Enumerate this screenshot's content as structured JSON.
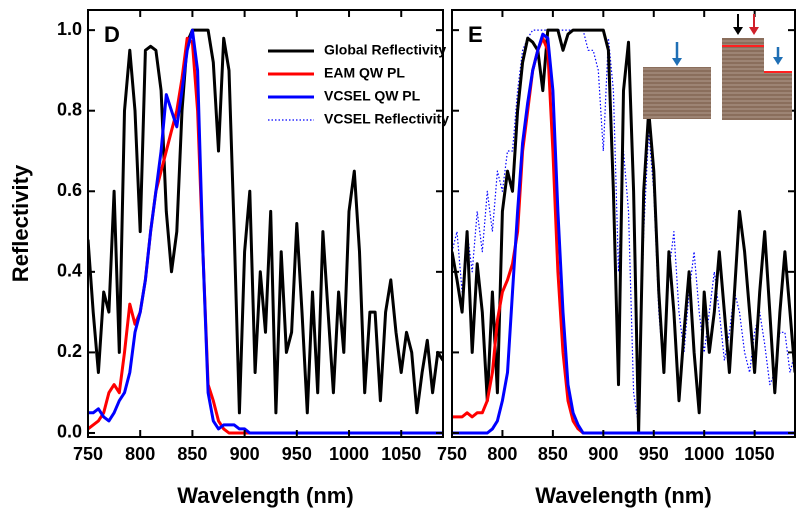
{
  "chart_data": [
    {
      "type": "line",
      "label": "D",
      "x_label": "Wavelength (nm)",
      "y_label": "Reflectivity",
      "xlim": [
        750,
        1090
      ],
      "ylim": [
        -0.01,
        1.05
      ],
      "xticks": [
        750,
        800,
        850,
        900,
        950,
        1000,
        1050
      ],
      "yticks": [
        {
          "value": 0,
          "label": "0.0"
        },
        {
          "value": 0.2,
          "label": "0.2"
        },
        {
          "value": 0.4,
          "label": "0.4"
        },
        {
          "value": 0.6,
          "label": "0.6"
        },
        {
          "value": 0.8,
          "label": "0.8"
        },
        {
          "value": 1,
          "label": "1.0"
        }
      ],
      "x": [
        750,
        755,
        760,
        765,
        770,
        775,
        780,
        785,
        790,
        795,
        800,
        805,
        810,
        815,
        820,
        825,
        830,
        835,
        840,
        845,
        850,
        855,
        860,
        865,
        870,
        875,
        880,
        885,
        890,
        895,
        900,
        905,
        910,
        915,
        920,
        925,
        930,
        935,
        940,
        945,
        950,
        955,
        960,
        965,
        970,
        975,
        980,
        985,
        990,
        995,
        1000,
        1005,
        1010,
        1015,
        1020,
        1025,
        1030,
        1035,
        1040,
        1045,
        1050,
        1055,
        1060,
        1065,
        1070,
        1075,
        1080,
        1085,
        1090
      ],
      "series": [
        {
          "name": "Global Reflectivity",
          "color": "#000000",
          "dash": "solid",
          "values": [
            0.48,
            0.3,
            0.15,
            0.35,
            0.3,
            0.6,
            0.2,
            0.8,
            0.95,
            0.8,
            0.5,
            0.95,
            0.96,
            0.95,
            0.85,
            0.55,
            0.4,
            0.5,
            0.8,
            0.97,
            1.0,
            1.0,
            1.0,
            1.0,
            0.92,
            0.7,
            0.98,
            0.9,
            0.5,
            0.05,
            0.45,
            0.6,
            0.15,
            0.4,
            0.25,
            0.55,
            0.05,
            0.45,
            0.2,
            0.25,
            0.52,
            0.3,
            0.05,
            0.35,
            0.1,
            0.5,
            0.3,
            0.1,
            0.35,
            0.2,
            0.55,
            0.65,
            0.45,
            0.1,
            0.3,
            0.3,
            0.08,
            0.3,
            0.38,
            0.25,
            0.15,
            0.25,
            0.2,
            0.05,
            0.15,
            0.23,
            0.1,
            0.2,
            0.18
          ]
        },
        {
          "name": "EAM QW PL",
          "color": "#ff0000",
          "dash": "solid",
          "values": [
            0.01,
            0.02,
            0.03,
            0.05,
            0.1,
            0.12,
            0.1,
            0.2,
            0.32,
            0.27,
            0.3,
            0.38,
            0.5,
            0.6,
            0.65,
            0.7,
            0.75,
            0.8,
            0.88,
            0.98,
            0.97,
            0.8,
            0.45,
            0.12,
            0.08,
            0.03,
            0.01,
            0,
            0,
            0,
            0,
            0,
            0,
            0,
            0,
            0,
            0,
            0,
            0,
            0,
            0,
            0,
            0,
            0,
            0,
            0,
            0,
            0,
            0,
            0,
            0,
            0,
            0,
            0,
            0,
            0,
            0,
            0,
            0,
            0,
            0,
            0,
            0,
            0,
            0,
            0,
            0,
            0,
            0
          ]
        },
        {
          "name": "VCSEL QW PL",
          "color": "#0000ff",
          "dash": "solid",
          "values": [
            0.05,
            0.05,
            0.06,
            0.04,
            0.03,
            0.05,
            0.08,
            0.1,
            0.15,
            0.25,
            0.3,
            0.38,
            0.5,
            0.6,
            0.7,
            0.84,
            0.8,
            0.76,
            0.85,
            0.95,
            1.0,
            0.9,
            0.45,
            0.1,
            0.03,
            0.01,
            0.02,
            0.02,
            0.02,
            0.01,
            0.01,
            0,
            0,
            0,
            0,
            0,
            0,
            0,
            0,
            0,
            0,
            0,
            0,
            0,
            0,
            0,
            0,
            0,
            0,
            0,
            0,
            0,
            0,
            0,
            0,
            0,
            0,
            0,
            0,
            0,
            0,
            0,
            0,
            0,
            0,
            0,
            0,
            0,
            0
          ]
        }
      ]
    },
    {
      "type": "line",
      "label": "E",
      "x_label": "Wavelength (nm)",
      "xlim": [
        750,
        1090
      ],
      "ylim": [
        -0.01,
        1.05
      ],
      "xticks": [
        750,
        800,
        850,
        900,
        950,
        1000,
        1050
      ],
      "yticks": [
        0,
        0.2,
        0.4,
        0.6,
        0.8,
        1
      ],
      "legend": "upper-right-of-first-panel",
      "x": [
        750,
        755,
        760,
        765,
        770,
        775,
        780,
        785,
        790,
        795,
        800,
        805,
        810,
        815,
        820,
        825,
        830,
        835,
        840,
        845,
        850,
        855,
        860,
        865,
        870,
        875,
        880,
        885,
        890,
        895,
        900,
        905,
        910,
        915,
        920,
        925,
        930,
        935,
        940,
        945,
        950,
        955,
        960,
        965,
        970,
        975,
        980,
        985,
        990,
        995,
        1000,
        1005,
        1010,
        1015,
        1020,
        1025,
        1030,
        1035,
        1040,
        1045,
        1050,
        1055,
        1060,
        1065,
        1070,
        1075,
        1080,
        1085,
        1090
      ],
      "series": [
        {
          "name": "Global Reflectivity",
          "color": "#000000",
          "dash": "solid",
          "values": [
            0.45,
            0.38,
            0.3,
            0.5,
            0.2,
            0.42,
            0.3,
            0.08,
            0.35,
            0.1,
            0.55,
            0.65,
            0.6,
            0.8,
            0.92,
            0.98,
            0.97,
            0.95,
            0.85,
            1.0,
            1.0,
            1.0,
            0.95,
            0.99,
            1.0,
            1.0,
            1.0,
            1.0,
            1.0,
            1.0,
            1.0,
            0.95,
            0.6,
            0.12,
            0.85,
            0.97,
            0.6,
            0.0,
            0.6,
            0.8,
            0.65,
            0.35,
            0.15,
            0.45,
            0.3,
            0.08,
            0.25,
            0.4,
            0.2,
            0.05,
            0.35,
            0.2,
            0.3,
            0.45,
            0.3,
            0.15,
            0.35,
            0.55,
            0.45,
            0.3,
            0.15,
            0.35,
            0.5,
            0.3,
            0.1,
            0.3,
            0.45,
            0.3,
            0.15
          ]
        },
        {
          "name": "EAM QW PL",
          "color": "#ff0000",
          "dash": "solid",
          "values": [
            0.04,
            0.04,
            0.04,
            0.05,
            0.04,
            0.05,
            0.05,
            0.08,
            0.15,
            0.28,
            0.35,
            0.38,
            0.42,
            0.5,
            0.7,
            0.8,
            0.9,
            0.95,
            0.98,
            0.95,
            0.7,
            0.4,
            0.2,
            0.08,
            0.03,
            0.01,
            0,
            0,
            0,
            0,
            0,
            0,
            0,
            0,
            0,
            0,
            0,
            0,
            0,
            0,
            0,
            0,
            0,
            0,
            0,
            0,
            0,
            0,
            0,
            0,
            0,
            0,
            0,
            0,
            0,
            0,
            0,
            0,
            0,
            0,
            0,
            0,
            0,
            0,
            0,
            0,
            0,
            0,
            0
          ]
        },
        {
          "name": "VCSEL QW PL",
          "color": "#0000ff",
          "dash": "solid",
          "values": [
            0,
            0,
            0,
            0,
            0,
            0,
            0,
            0,
            0.01,
            0.03,
            0.08,
            0.15,
            0.35,
            0.55,
            0.72,
            0.82,
            0.9,
            0.95,
            0.99,
            0.98,
            0.85,
            0.55,
            0.3,
            0.12,
            0.05,
            0.02,
            0,
            0,
            0,
            0,
            0,
            0,
            0,
            0,
            0,
            0,
            0,
            0,
            0,
            0,
            0,
            0,
            0,
            0,
            0,
            0,
            0,
            0,
            0,
            0,
            0,
            0,
            0,
            0,
            0,
            0,
            0,
            0,
            0,
            0,
            0,
            0,
            0,
            0,
            0,
            0,
            0,
            0,
            0
          ]
        },
        {
          "name": "VCSEL Reflectivity",
          "color": "#0000ff",
          "dash": "dotted",
          "values": [
            0.45,
            0.5,
            0.35,
            0.5,
            0.4,
            0.55,
            0.45,
            0.6,
            0.5,
            0.65,
            0.6,
            0.7,
            0.7,
            0.85,
            0.95,
            0.98,
            1.0,
            1.0,
            1.0,
            1.0,
            1.0,
            1.0,
            1.0,
            1.0,
            1.0,
            1.0,
            1.0,
            0.95,
            0.95,
            0.9,
            0.7,
            0.98,
            0.85,
            0.4,
            0.7,
            0.55,
            0.1,
            0.02,
            0.5,
            0.75,
            0.6,
            0.3,
            0.15,
            0.4,
            0.5,
            0.3,
            0.2,
            0.35,
            0.45,
            0.3,
            0.2,
            0.3,
            0.4,
            0.3,
            0.18,
            0.25,
            0.35,
            0.3,
            0.2,
            0.15,
            0.25,
            0.3,
            0.22,
            0.12,
            0.15,
            0.25,
            0.25,
            0.15,
            0.2
          ]
        }
      ]
    }
  ]
}
